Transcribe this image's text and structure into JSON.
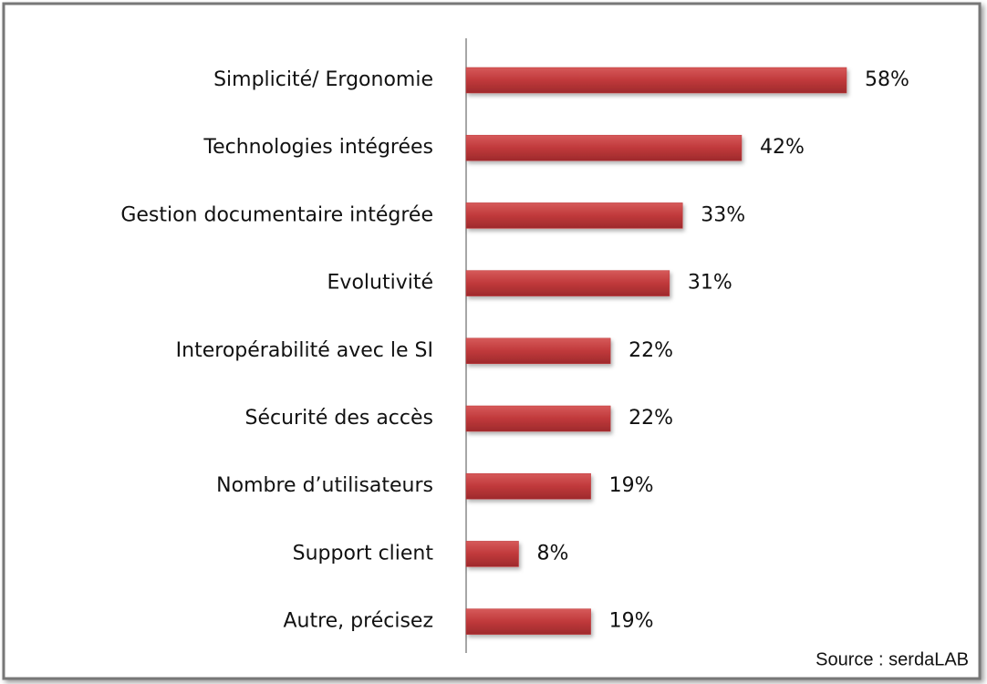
{
  "chart_data": {
    "type": "bar",
    "orientation": "horizontal",
    "categories": [
      "Simplicité/ Ergonomie",
      "Technologies intégrées",
      "Gestion documentaire intégrée",
      "Evolutivité",
      "Interopérabilité avec le SI",
      "Sécurité des accès",
      "Nombre d’utilisateurs",
      "Support client",
      "Autre, précisez"
    ],
    "values": [
      58,
      42,
      33,
      31,
      22,
      22,
      19,
      8,
      19
    ],
    "value_labels": [
      "58%",
      "42%",
      "33%",
      "31%",
      "22%",
      "22%",
      "19%",
      "8%",
      "19%"
    ],
    "color": "#c0393b",
    "annotation": "Source : serdaLAB"
  }
}
